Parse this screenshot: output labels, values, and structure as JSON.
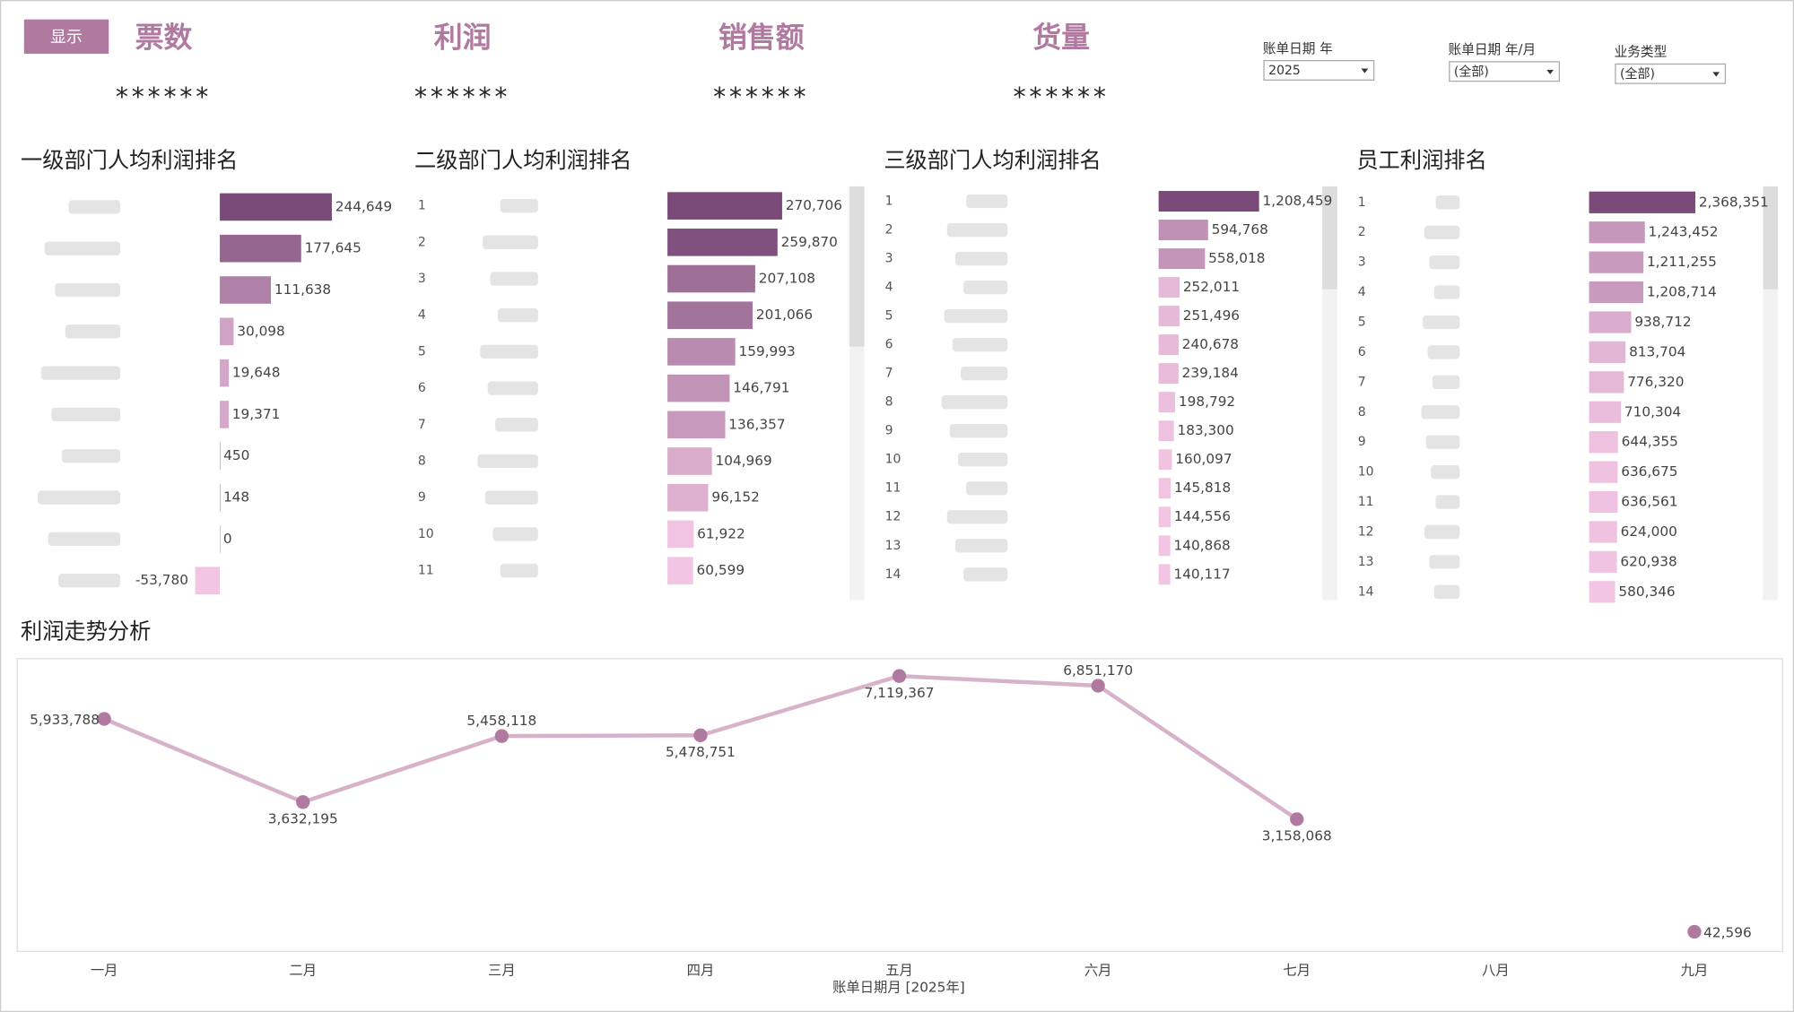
{
  "header": {
    "button": "显示",
    "kpis": [
      {
        "title": "票数",
        "value": "******"
      },
      {
        "title": "利润",
        "value": "******"
      },
      {
        "title": "销售额",
        "value": "******"
      },
      {
        "title": "货量",
        "value": "******"
      }
    ]
  },
  "filters": [
    {
      "label": "账单日期 年",
      "value": "2025"
    },
    {
      "label": "账单日期 年/月",
      "value": "(全部)"
    },
    {
      "label": "业务类型",
      "value": "(全部)"
    }
  ],
  "chart_data": [
    {
      "type": "barh",
      "title": "一级部门人均利润排名",
      "categories": [
        null,
        null,
        null,
        null,
        null,
        null,
        null,
        null,
        null,
        null
      ],
      "values": [
        244649,
        177645,
        111638,
        30098,
        19648,
        19371,
        450,
        148,
        0,
        -53780
      ],
      "value_labels": [
        "244,649",
        "177,645",
        "111,638",
        "30,098",
        "19,648",
        "19,371",
        "450",
        "148",
        "0",
        "-53,780"
      ],
      "xlim": [
        -60000,
        300000
      ],
      "color_range": [
        "#f2c6e3",
        "#7a4a78"
      ]
    },
    {
      "type": "barh",
      "title": "二级部门人均利润排名",
      "categories": [
        "1",
        "2",
        "3",
        "4",
        "5",
        "6",
        "7",
        "8",
        "9",
        "10",
        "11"
      ],
      "values": [
        270706,
        259870,
        207108,
        201066,
        159993,
        146791,
        136357,
        104969,
        96152,
        61922,
        60599
      ],
      "value_labels": [
        "270,706",
        "259,870",
        "207,108",
        "201,066",
        "159,993",
        "146,791",
        "136,357",
        "104,969",
        "96,152",
        "61,922",
        "60,599"
      ],
      "xlim": [
        0,
        400000
      ],
      "color_range": [
        "#f2c6e3",
        "#7a4a78"
      ]
    },
    {
      "type": "barh",
      "title": "三级部门人均利润排名",
      "categories": [
        "1",
        "2",
        "3",
        "4",
        "5",
        "6",
        "7",
        "8",
        "9",
        "10",
        "11",
        "12",
        "13",
        "14"
      ],
      "values": [
        1208459,
        594768,
        558018,
        252011,
        251496,
        240678,
        239184,
        198792,
        183300,
        160097,
        145818,
        144556,
        140868,
        140117
      ],
      "value_labels": [
        "1,208,459",
        "594,768",
        "558,018",
        "252,011",
        "251,496",
        "240,678",
        "239,184",
        "198,792",
        "183,300",
        "160,097",
        "145,818",
        "144,556",
        "140,868",
        "140,117"
      ],
      "xlim": [
        0,
        1900000
      ],
      "color_range": [
        "#f2c6e3",
        "#7a4a78"
      ]
    },
    {
      "type": "barh",
      "title": "员工利润排名",
      "categories": [
        "1",
        "2",
        "3",
        "4",
        "5",
        "6",
        "7",
        "8",
        "9",
        "10",
        "11",
        "12",
        "13",
        "14"
      ],
      "values": [
        2368351,
        1243452,
        1211255,
        1208714,
        938712,
        813704,
        776320,
        710304,
        644355,
        636675,
        636561,
        624000,
        620938,
        580346
      ],
      "value_labels": [
        "2,368,351",
        "1,243,452",
        "1,211,255",
        "1,208,714",
        "938,712",
        "813,704",
        "776,320",
        "710,304",
        "644,355",
        "636,675",
        "636,561",
        "624,000",
        "620,938",
        "580,346"
      ],
      "xlim": [
        0,
        3700000
      ],
      "color_range": [
        "#f2c6e3",
        "#7a4a78"
      ]
    },
    {
      "type": "line",
      "title": "利润走势分析",
      "xlabel": "账单日期月 [2025年]",
      "categories": [
        "一月",
        "二月",
        "三月",
        "四月",
        "五月",
        "六月",
        "七月",
        "八月",
        "九月"
      ],
      "values": [
        5933788,
        3632195,
        5458118,
        5478751,
        7119367,
        6851170,
        3158068,
        null,
        42596
      ],
      "value_labels": [
        "5,933,788",
        "3,632,195",
        "5,458,118",
        "5,478,751",
        "7,119,367",
        "6,851,170",
        "3,158,068",
        null,
        "42,596"
      ],
      "ylim": [
        -500000,
        7600000
      ],
      "color": "#d6b3cb",
      "marker_color": "#b07aa0"
    }
  ]
}
